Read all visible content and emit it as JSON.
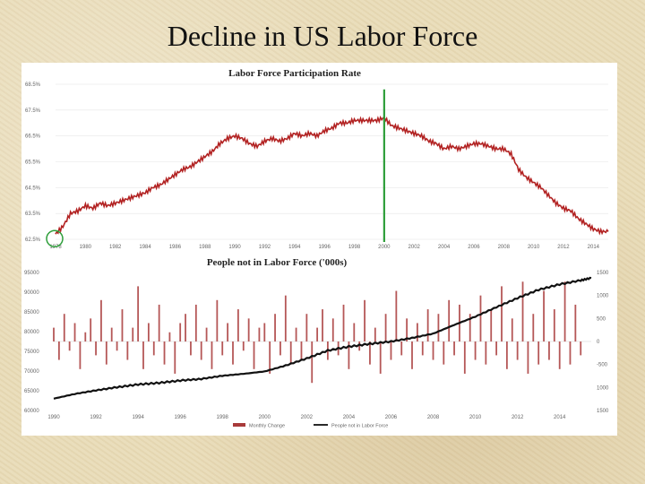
{
  "slide": {
    "title": "Decline in US Labor Force"
  },
  "chart_data": [
    {
      "type": "line",
      "title": "Labor Force Participation Rate",
      "xlabel": "",
      "ylabel": "",
      "xlim": [
        1978,
        2015
      ],
      "ylim": [
        62.5,
        68.5
      ],
      "x_ticks": [
        "1978",
        "1980",
        "1982",
        "1984",
        "1986",
        "1988",
        "1990",
        "1992",
        "1994",
        "1996",
        "1998",
        "2000",
        "2002",
        "2004",
        "2006",
        "2008",
        "2010",
        "2012",
        "2014"
      ],
      "y_ticks": [
        "62.5%",
        "63.5%",
        "64.5%",
        "65.5%",
        "66.5%",
        "67.5%",
        "68.5%"
      ],
      "series": [
        {
          "x": [
            1978.0,
            1978.5,
            1979.0,
            1979.5,
            1980.0,
            1980.5,
            1981.0,
            1981.5,
            1982.0,
            1982.5,
            1983.0,
            1983.5,
            1984.0,
            1984.5,
            1985.0,
            1985.5,
            1986.0,
            1986.5,
            1987.0,
            1987.5,
            1988.0,
            1988.5,
            1989.0,
            1989.5,
            1990.0,
            1990.5,
            1991.0,
            1991.5,
            1992.0,
            1992.5,
            1993.0,
            1993.5,
            1994.0,
            1994.5,
            1995.0,
            1995.5,
            1996.0,
            1996.5,
            1997.0,
            1997.5,
            1998.0,
            1998.5,
            1999.0,
            1999.5,
            2000.0,
            2000.5,
            2001.0,
            2001.5,
            2002.0,
            2002.5,
            2003.0,
            2003.5,
            2004.0,
            2004.5,
            2005.0,
            2005.5,
            2006.0,
            2006.5,
            2007.0,
            2007.5,
            2008.0,
            2008.5,
            2009.0,
            2009.5,
            2010.0,
            2010.5,
            2011.0,
            2011.5,
            2012.0,
            2012.5,
            2013.0,
            2013.5,
            2014.0,
            2014.5,
            2015.0
          ],
          "values": [
            62.7,
            63.0,
            63.5,
            63.6,
            63.8,
            63.7,
            63.9,
            63.8,
            63.9,
            64.0,
            64.1,
            64.2,
            64.3,
            64.5,
            64.6,
            64.8,
            65.0,
            65.2,
            65.3,
            65.5,
            65.7,
            65.9,
            66.2,
            66.4,
            66.5,
            66.4,
            66.2,
            66.1,
            66.3,
            66.4,
            66.3,
            66.4,
            66.6,
            66.5,
            66.6,
            66.5,
            66.7,
            66.8,
            67.0,
            67.0,
            67.1,
            67.1,
            67.1,
            67.1,
            67.2,
            66.9,
            66.8,
            66.7,
            66.6,
            66.5,
            66.3,
            66.2,
            66.0,
            66.1,
            66.0,
            66.1,
            66.2,
            66.2,
            66.1,
            66.0,
            66.0,
            65.8,
            65.2,
            64.9,
            64.7,
            64.5,
            64.2,
            63.9,
            63.7,
            63.6,
            63.3,
            63.1,
            62.9,
            62.8,
            62.8
          ]
        }
      ],
      "annotations": [
        {
          "type": "vertical-line",
          "x": 2000,
          "color": "#2e9e3a"
        },
        {
          "type": "circle",
          "x": 1978,
          "y": 62.7,
          "color": "#2e9e3a"
        }
      ],
      "colors": {
        "line": "#b22222"
      }
    },
    {
      "type": "bar+line",
      "title": "People not in Labor Force ('000s)",
      "xlim": [
        1990,
        2015.5
      ],
      "x_ticks": [
        "1990",
        "1992",
        "1994",
        "1996",
        "1998",
        "2000",
        "2002",
        "2004",
        "2006",
        "2008",
        "2010",
        "2012",
        "2014"
      ],
      "y_left_ticks": [
        "95000",
        "90000",
        "85000",
        "80000",
        "75000",
        "70000",
        "65000",
        "60000"
      ],
      "y_right_ticks": [
        "1500",
        "1000",
        "500",
        "0",
        "-500",
        "1000",
        "1500"
      ],
      "ylim_left": [
        60000,
        95000
      ],
      "ylim_right": [
        -1500,
        1500
      ],
      "legend": {
        "placement": "bottom",
        "entries": [
          "Monthly Change",
          "People not in Labor Force"
        ]
      },
      "series": [
        {
          "name": "People not in Labor Force",
          "kind": "line",
          "axis": "left",
          "x": [
            1990,
            1991,
            1992,
            1993,
            1994,
            1995,
            1996,
            1997,
            1998,
            1999,
            2000,
            2001,
            2002,
            2003,
            2004,
            2005,
            2006,
            2007,
            2008,
            2009,
            2010,
            2011,
            2012,
            2013,
            2014,
            2015,
            2015.5
          ],
          "values": [
            63000,
            64200,
            65100,
            65900,
            66600,
            67000,
            67600,
            68000,
            68800,
            69300,
            69900,
            71400,
            73200,
            75200,
            76200,
            76900,
            77500,
            78400,
            79500,
            81700,
            83800,
            86200,
            88500,
            90600,
            92000,
            93000,
            93600
          ]
        },
        {
          "name": "Monthly Change",
          "kind": "bar",
          "axis": "right",
          "x": [
            1990.0,
            1990.25,
            1990.5,
            1990.75,
            1991.0,
            1991.25,
            1991.5,
            1991.75,
            1992.0,
            1992.25,
            1992.5,
            1992.75,
            1993.0,
            1993.25,
            1993.5,
            1993.75,
            1994.0,
            1994.25,
            1994.5,
            1994.75,
            1995.0,
            1995.25,
            1995.5,
            1995.75,
            1996.0,
            1996.25,
            1996.5,
            1996.75,
            1997.0,
            1997.25,
            1997.5,
            1997.75,
            1998.0,
            1998.25,
            1998.5,
            1998.75,
            1999.0,
            1999.25,
            1999.5,
            1999.75,
            2000.0,
            2000.25,
            2000.5,
            2000.75,
            2001.0,
            2001.25,
            2001.5,
            2001.75,
            2002.0,
            2002.25,
            2002.5,
            2002.75,
            2003.0,
            2003.25,
            2003.5,
            2003.75,
            2004.0,
            2004.25,
            2004.5,
            2004.75,
            2005.0,
            2005.25,
            2005.5,
            2005.75,
            2006.0,
            2006.25,
            2006.5,
            2006.75,
            2007.0,
            2007.25,
            2007.5,
            2007.75,
            2008.0,
            2008.25,
            2008.5,
            2008.75,
            2009.0,
            2009.25,
            2009.5,
            2009.75,
            2010.0,
            2010.25,
            2010.5,
            2010.75,
            2011.0,
            2011.25,
            2011.5,
            2011.75,
            2012.0,
            2012.25,
            2012.5,
            2012.75,
            2013.0,
            2013.25,
            2013.5,
            2013.75,
            2014.0,
            2014.25,
            2014.5,
            2014.75,
            2015.0
          ],
          "values": [
            300,
            -400,
            600,
            -200,
            400,
            -600,
            200,
            500,
            -300,
            900,
            -500,
            300,
            -200,
            700,
            -400,
            300,
            1200,
            -600,
            400,
            -300,
            800,
            -500,
            200,
            -700,
            400,
            600,
            -300,
            800,
            -400,
            300,
            -600,
            900,
            -300,
            400,
            -500,
            700,
            -200,
            500,
            -600,
            300,
            400,
            -700,
            600,
            -300,
            1000,
            -500,
            300,
            -400,
            600,
            -900,
            300,
            700,
            -400,
            500,
            -300,
            800,
            -600,
            400,
            -200,
            900,
            -500,
            300,
            -700,
            600,
            -400,
            1100,
            -300,
            500,
            -600,
            400,
            -300,
            700,
            -400,
            600,
            -500,
            900,
            -300,
            800,
            -700,
            600,
            -400,
            1000,
            -500,
            700,
            -300,
            1200,
            -600,
            500,
            -400,
            1300,
            -700,
            600,
            -500,
            1100,
            -400,
            700,
            -600,
            1300,
            -500,
            800,
            -300
          ]
        }
      ],
      "colors": {
        "line": "#111111",
        "bars": "#a83a3a"
      }
    }
  ]
}
